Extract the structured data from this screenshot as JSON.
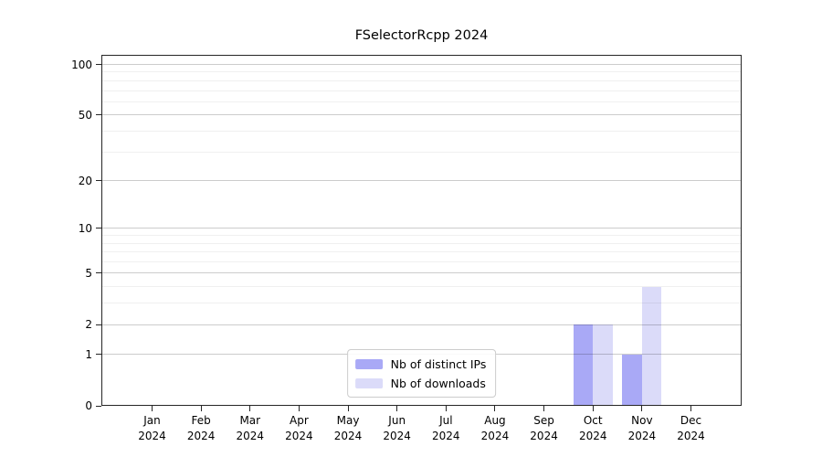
{
  "chart_data": {
    "type": "bar",
    "title": "FSelectorRcpp 2024",
    "categories": [
      "Jan",
      "Feb",
      "Mar",
      "Apr",
      "May",
      "Jun",
      "Jul",
      "Aug",
      "Sep",
      "Oct",
      "Nov",
      "Dec"
    ],
    "x_year": "2024",
    "series": [
      {
        "name": "Nb of distinct IPs",
        "color": "#a9a9f6",
        "values": [
          0,
          0,
          0,
          0,
          0,
          0,
          0,
          0,
          0,
          2,
          1,
          0
        ]
      },
      {
        "name": "Nb of downloads",
        "color": "#dbdbf9",
        "values": [
          0,
          0,
          0,
          0,
          0,
          0,
          0,
          0,
          0,
          2,
          4,
          0
        ]
      }
    ],
    "yscale": "log1p",
    "ylim": [
      0,
      114
    ],
    "yticks": [
      0,
      1,
      2,
      5,
      10,
      20,
      50,
      100
    ],
    "yticks_minor": [
      3,
      4,
      6,
      7,
      8,
      9,
      30,
      40,
      60,
      70,
      80,
      90
    ],
    "grid": "on",
    "legend_position": "bottom-center-inside",
    "colors": {
      "grid_major": "rgba(0,0,0,0.20)",
      "grid_minor": "rgba(0,0,0,0.06)",
      "spine": "#262626",
      "background": "#ffffff"
    }
  }
}
